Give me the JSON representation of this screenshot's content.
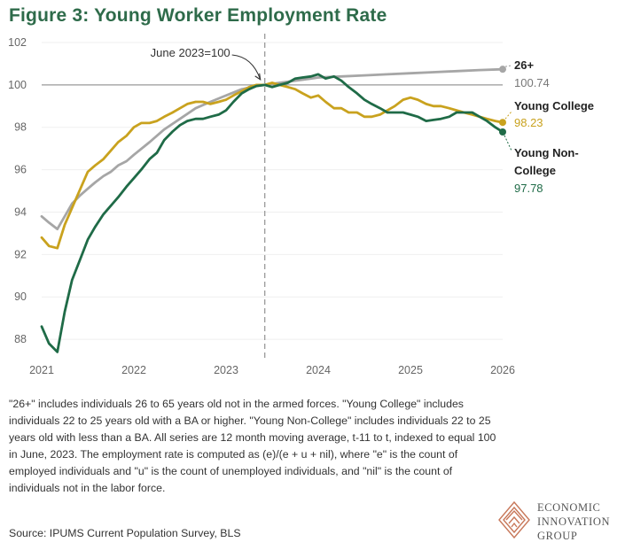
{
  "title": "Figure 3: Young Worker Employment Rate",
  "chart_data": {
    "type": "line",
    "title": "Figure 3: Young Worker Employment Rate",
    "xlabel": "",
    "ylabel": "",
    "xlim": [
      2021,
      2026
    ],
    "ylim": [
      87,
      102
    ],
    "x_ticks": [
      "2021",
      "2022",
      "2023",
      "2024",
      "2025",
      "2026"
    ],
    "y_ticks": [
      "88",
      "90",
      "92",
      "94",
      "96",
      "98",
      "100",
      "102"
    ],
    "reference_line": {
      "y": 100,
      "label": "100"
    },
    "annotation": {
      "text": "June 2023=100",
      "x": 2023.42
    },
    "series": [
      {
        "name": "26+",
        "end_value": "100.74",
        "color": "#a6a6a6",
        "x": [
          2021.0,
          2021.08,
          2021.17,
          2021.25,
          2021.33,
          2021.42,
          2021.5,
          2021.58,
          2021.67,
          2021.75,
          2021.83,
          2021.92,
          2022.0,
          2022.17,
          2022.33,
          2022.5,
          2022.67,
          2022.83,
          2023.0,
          2023.17,
          2023.33,
          2023.42,
          2023.58,
          2023.75,
          2023.92,
          2024.0,
          2024.25,
          2024.5,
          2024.75,
          2025.0,
          2025.25,
          2025.5,
          2025.75,
          2026.0
        ],
        "values": [
          93.8,
          93.5,
          93.2,
          93.8,
          94.4,
          94.8,
          95.1,
          95.4,
          95.7,
          95.9,
          96.2,
          96.4,
          96.7,
          97.3,
          97.9,
          98.4,
          98.9,
          99.2,
          99.5,
          99.8,
          99.95,
          100.0,
          100.1,
          100.2,
          100.3,
          100.35,
          100.4,
          100.45,
          100.5,
          100.55,
          100.6,
          100.65,
          100.7,
          100.74
        ]
      },
      {
        "name": "Young College",
        "end_value": "98.23",
        "color": "#c9a21e",
        "x": [
          2021.0,
          2021.08,
          2021.17,
          2021.25,
          2021.33,
          2021.42,
          2021.5,
          2021.58,
          2021.67,
          2021.75,
          2021.83,
          2021.92,
          2022.0,
          2022.08,
          2022.17,
          2022.25,
          2022.33,
          2022.42,
          2022.5,
          2022.58,
          2022.67,
          2022.75,
          2022.83,
          2022.92,
          2023.0,
          2023.08,
          2023.17,
          2023.25,
          2023.33,
          2023.42,
          2023.5,
          2023.58,
          2023.67,
          2023.75,
          2023.83,
          2023.92,
          2024.0,
          2024.08,
          2024.17,
          2024.25,
          2024.33,
          2024.42,
          2024.5,
          2024.58,
          2024.67,
          2024.75,
          2024.83,
          2024.92,
          2025.0,
          2025.08,
          2025.17,
          2025.25,
          2025.33,
          2025.42,
          2025.5,
          2025.58,
          2025.67,
          2025.75,
          2025.83,
          2025.92,
          2026.0
        ],
        "values": [
          92.8,
          92.4,
          92.3,
          93.4,
          94.2,
          95.1,
          95.9,
          96.2,
          96.5,
          96.9,
          97.3,
          97.6,
          98.0,
          98.2,
          98.2,
          98.3,
          98.5,
          98.7,
          98.9,
          99.1,
          99.2,
          99.2,
          99.1,
          99.2,
          99.3,
          99.5,
          99.7,
          99.9,
          100.0,
          100.0,
          100.1,
          100.0,
          99.9,
          99.8,
          99.6,
          99.4,
          99.5,
          99.2,
          98.9,
          98.9,
          98.7,
          98.7,
          98.5,
          98.5,
          98.6,
          98.8,
          99.0,
          99.3,
          99.4,
          99.3,
          99.1,
          99.0,
          99.0,
          98.9,
          98.8,
          98.7,
          98.6,
          98.5,
          98.4,
          98.3,
          98.23
        ]
      },
      {
        "name": "Young Non-College",
        "end_value": "97.78",
        "color": "#1f6b47",
        "x": [
          2021.0,
          2021.08,
          2021.17,
          2021.25,
          2021.33,
          2021.42,
          2021.5,
          2021.58,
          2021.67,
          2021.75,
          2021.83,
          2021.92,
          2022.0,
          2022.08,
          2022.17,
          2022.25,
          2022.33,
          2022.42,
          2022.5,
          2022.58,
          2022.67,
          2022.75,
          2022.83,
          2022.92,
          2023.0,
          2023.08,
          2023.17,
          2023.25,
          2023.33,
          2023.42,
          2023.5,
          2023.58,
          2023.67,
          2023.75,
          2023.83,
          2023.92,
          2024.0,
          2024.08,
          2024.17,
          2024.25,
          2024.33,
          2024.42,
          2024.5,
          2024.58,
          2024.67,
          2024.75,
          2024.83,
          2024.92,
          2025.0,
          2025.08,
          2025.17,
          2025.25,
          2025.33,
          2025.42,
          2025.5,
          2025.58,
          2025.67,
          2025.75,
          2025.83,
          2025.92,
          2026.0
        ],
        "values": [
          88.6,
          87.8,
          87.4,
          89.3,
          90.8,
          91.8,
          92.7,
          93.3,
          93.9,
          94.3,
          94.7,
          95.2,
          95.6,
          96.0,
          96.5,
          96.8,
          97.4,
          97.8,
          98.1,
          98.3,
          98.4,
          98.4,
          98.5,
          98.6,
          98.8,
          99.2,
          99.6,
          99.8,
          99.95,
          100.0,
          99.9,
          100.0,
          100.1,
          100.3,
          100.35,
          100.4,
          100.5,
          100.3,
          100.4,
          100.2,
          99.9,
          99.6,
          99.3,
          99.1,
          98.9,
          98.7,
          98.7,
          98.7,
          98.6,
          98.5,
          98.3,
          98.35,
          98.4,
          98.5,
          98.7,
          98.7,
          98.7,
          98.5,
          98.3,
          98.0,
          97.78
        ]
      }
    ]
  },
  "note": "\"26+\" includes individuals 26 to 65 years old not in the armed forces. \"Young College\" includes individuals 22 to 25 years old with a BA or higher. \"Young Non-College\" includes individuals 22 to 25 years old with less than a BA. All series are 12 month moving average, t-11 to t, indexed to equal 100 in June, 2023. The employment rate is computed as (e)/(e + u + nil), where \"e\" is the count of employed individuals and \"u\" is the count of unemployed individuals, and \"nil\" is the count of individuals not in the labor force.",
  "source": "Source: IPUMS Current Population Survey, BLS",
  "logo": {
    "line1": "ECONOMIC",
    "line2": "INNOVATION",
    "line3": "GROUP"
  },
  "colors": {
    "title": "#2e6b4a",
    "gray": "#a6a6a6",
    "gold": "#c9a21e",
    "green": "#1f6b47",
    "logo": "#c8785a"
  }
}
